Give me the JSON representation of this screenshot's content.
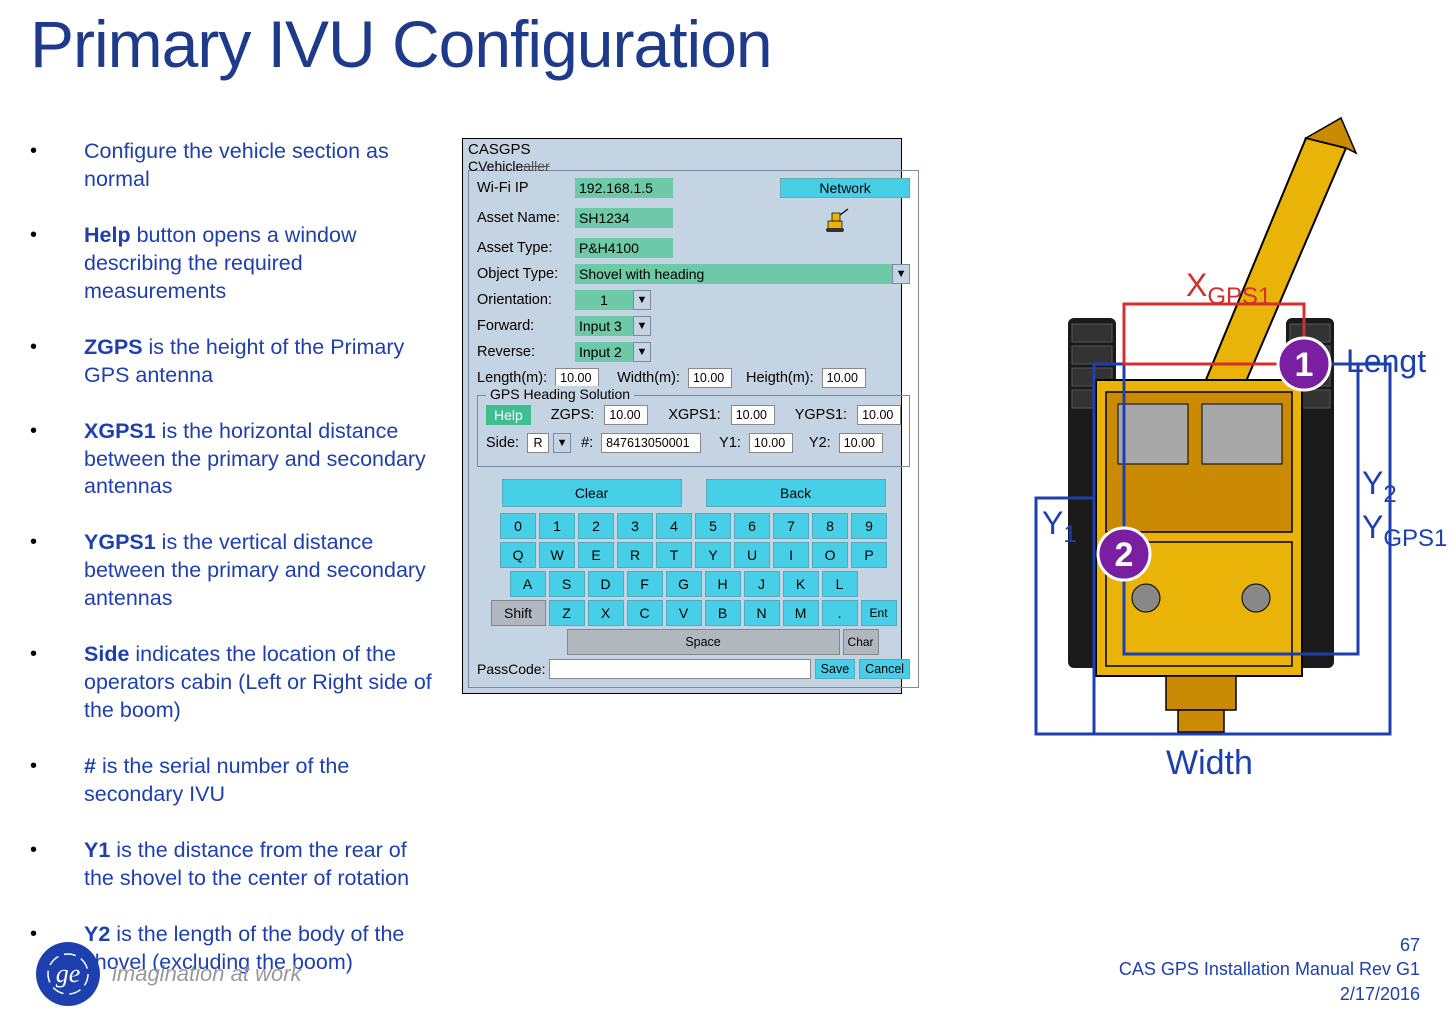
{
  "title": "Primary IVU Configuration",
  "bullets": [
    {
      "pre": "Configure the vehicle section as normal",
      "bold": "",
      "post": ""
    },
    {
      "pre": "",
      "bold": "Help",
      "post": " button opens a window describing the required measurements"
    },
    {
      "pre": "",
      "bold": "ZGPS",
      "post": " is the height of the Primary GPS antenna"
    },
    {
      "pre": "",
      "bold": "XGPS1",
      "post": " is the horizontal distance between the primary and secondary antennas"
    },
    {
      "pre": "",
      "bold": "YGPS1",
      "post": " is the vertical distance between the primary and secondary antennas"
    },
    {
      "pre": "",
      "bold": "Side",
      "post": " indicates the location of the operators cabin (Left or Right side of the boom)"
    },
    {
      "pre": "",
      "bold": "#",
      "post": " is the serial number of the secondary IVU"
    },
    {
      "pre": "",
      "bold": "Y1",
      "post": " is the distance from the rear of the shovel to the center of rotation"
    },
    {
      "pre": "",
      "bold": "Y2",
      "post": " is the length of the body of the shovel (excluding the boom)"
    }
  ],
  "panel": {
    "header1": "CASGPS",
    "header2": "CVehicle",
    "header2_strike": "aller",
    "wifi_label": "Wi-Fi IP",
    "wifi_value": "192.168.1.5",
    "network_btn": "Network",
    "asset_name_label": "Asset Name:",
    "asset_name_value": "SH1234",
    "asset_type_label": "Asset Type:",
    "asset_type_value": "P&H4100",
    "object_type_label": "Object Type:",
    "object_type_value": "Shovel with heading",
    "orientation_label": "Orientation:",
    "orientation_value": "1",
    "forward_label": "Forward:",
    "forward_value": "Input 3",
    "reverse_label": "Reverse:",
    "reverse_value": "Input 2",
    "length_label": "Length(m):",
    "length_value": "10.00",
    "width_label": "Width(m):",
    "width_value": "10.00",
    "height_label": "Heigth(m):",
    "height_value": "10.00",
    "gps_section": "GPS Heading Solution",
    "help_btn": "Help",
    "zgps_label": "ZGPS:",
    "zgps_value": "10.00",
    "xgps1_label": "XGPS1:",
    "xgps1_value": "10.00",
    "ygps1_label": "YGPS1:",
    "ygps1_value": "10.00",
    "side_label": "Side:",
    "side_value": "R",
    "serial_label": "#:",
    "serial_value": "847613050001",
    "y1_label": "Y1:",
    "y1_value": "10.00",
    "y2_label": "Y2:",
    "y2_value": "10.00",
    "clear_btn": "Clear",
    "back_btn": "Back",
    "keys_row1": [
      "0",
      "1",
      "2",
      "3",
      "4",
      "5",
      "6",
      "7",
      "8",
      "9"
    ],
    "keys_row2": [
      "Q",
      "W",
      "E",
      "R",
      "T",
      "Y",
      "U",
      "I",
      "O",
      "P"
    ],
    "keys_row3": [
      "A",
      "S",
      "D",
      "F",
      "G",
      "H",
      "J",
      "K",
      "L"
    ],
    "shift": "Shift",
    "keys_row4": [
      "Z",
      "X",
      "C",
      "V",
      "B",
      "N",
      "M",
      "."
    ],
    "ent": "Ent",
    "space": "Space",
    "char": "Char",
    "passcode_label": "PassCode:",
    "save_btn": "Save",
    "cancel_btn": "Cancel"
  },
  "diagram": {
    "xgps1": "X",
    "xgps1_sub": "GPS1",
    "length": "Lengt",
    "y1": "Y",
    "y1_sub": "1",
    "y2": "Y",
    "y2_sub": "2",
    "ygps1": "Y",
    "ygps1_sub": "GPS1",
    "width": "Width",
    "marker1": "1",
    "marker2": "2",
    "colors": {
      "blue": "#1e40af",
      "red": "#d32f2f",
      "purple": "#7b1fa2",
      "yellow": "#eab308",
      "dark_yellow": "#ca8a04",
      "black": "#1a1a1a",
      "gray": "#555"
    }
  },
  "footer": {
    "ge": "ge",
    "tagline": "imagination at work",
    "page_num": "67",
    "doc_title": "CAS GPS Installation Manual Rev G1",
    "date": "2/17/2016"
  }
}
